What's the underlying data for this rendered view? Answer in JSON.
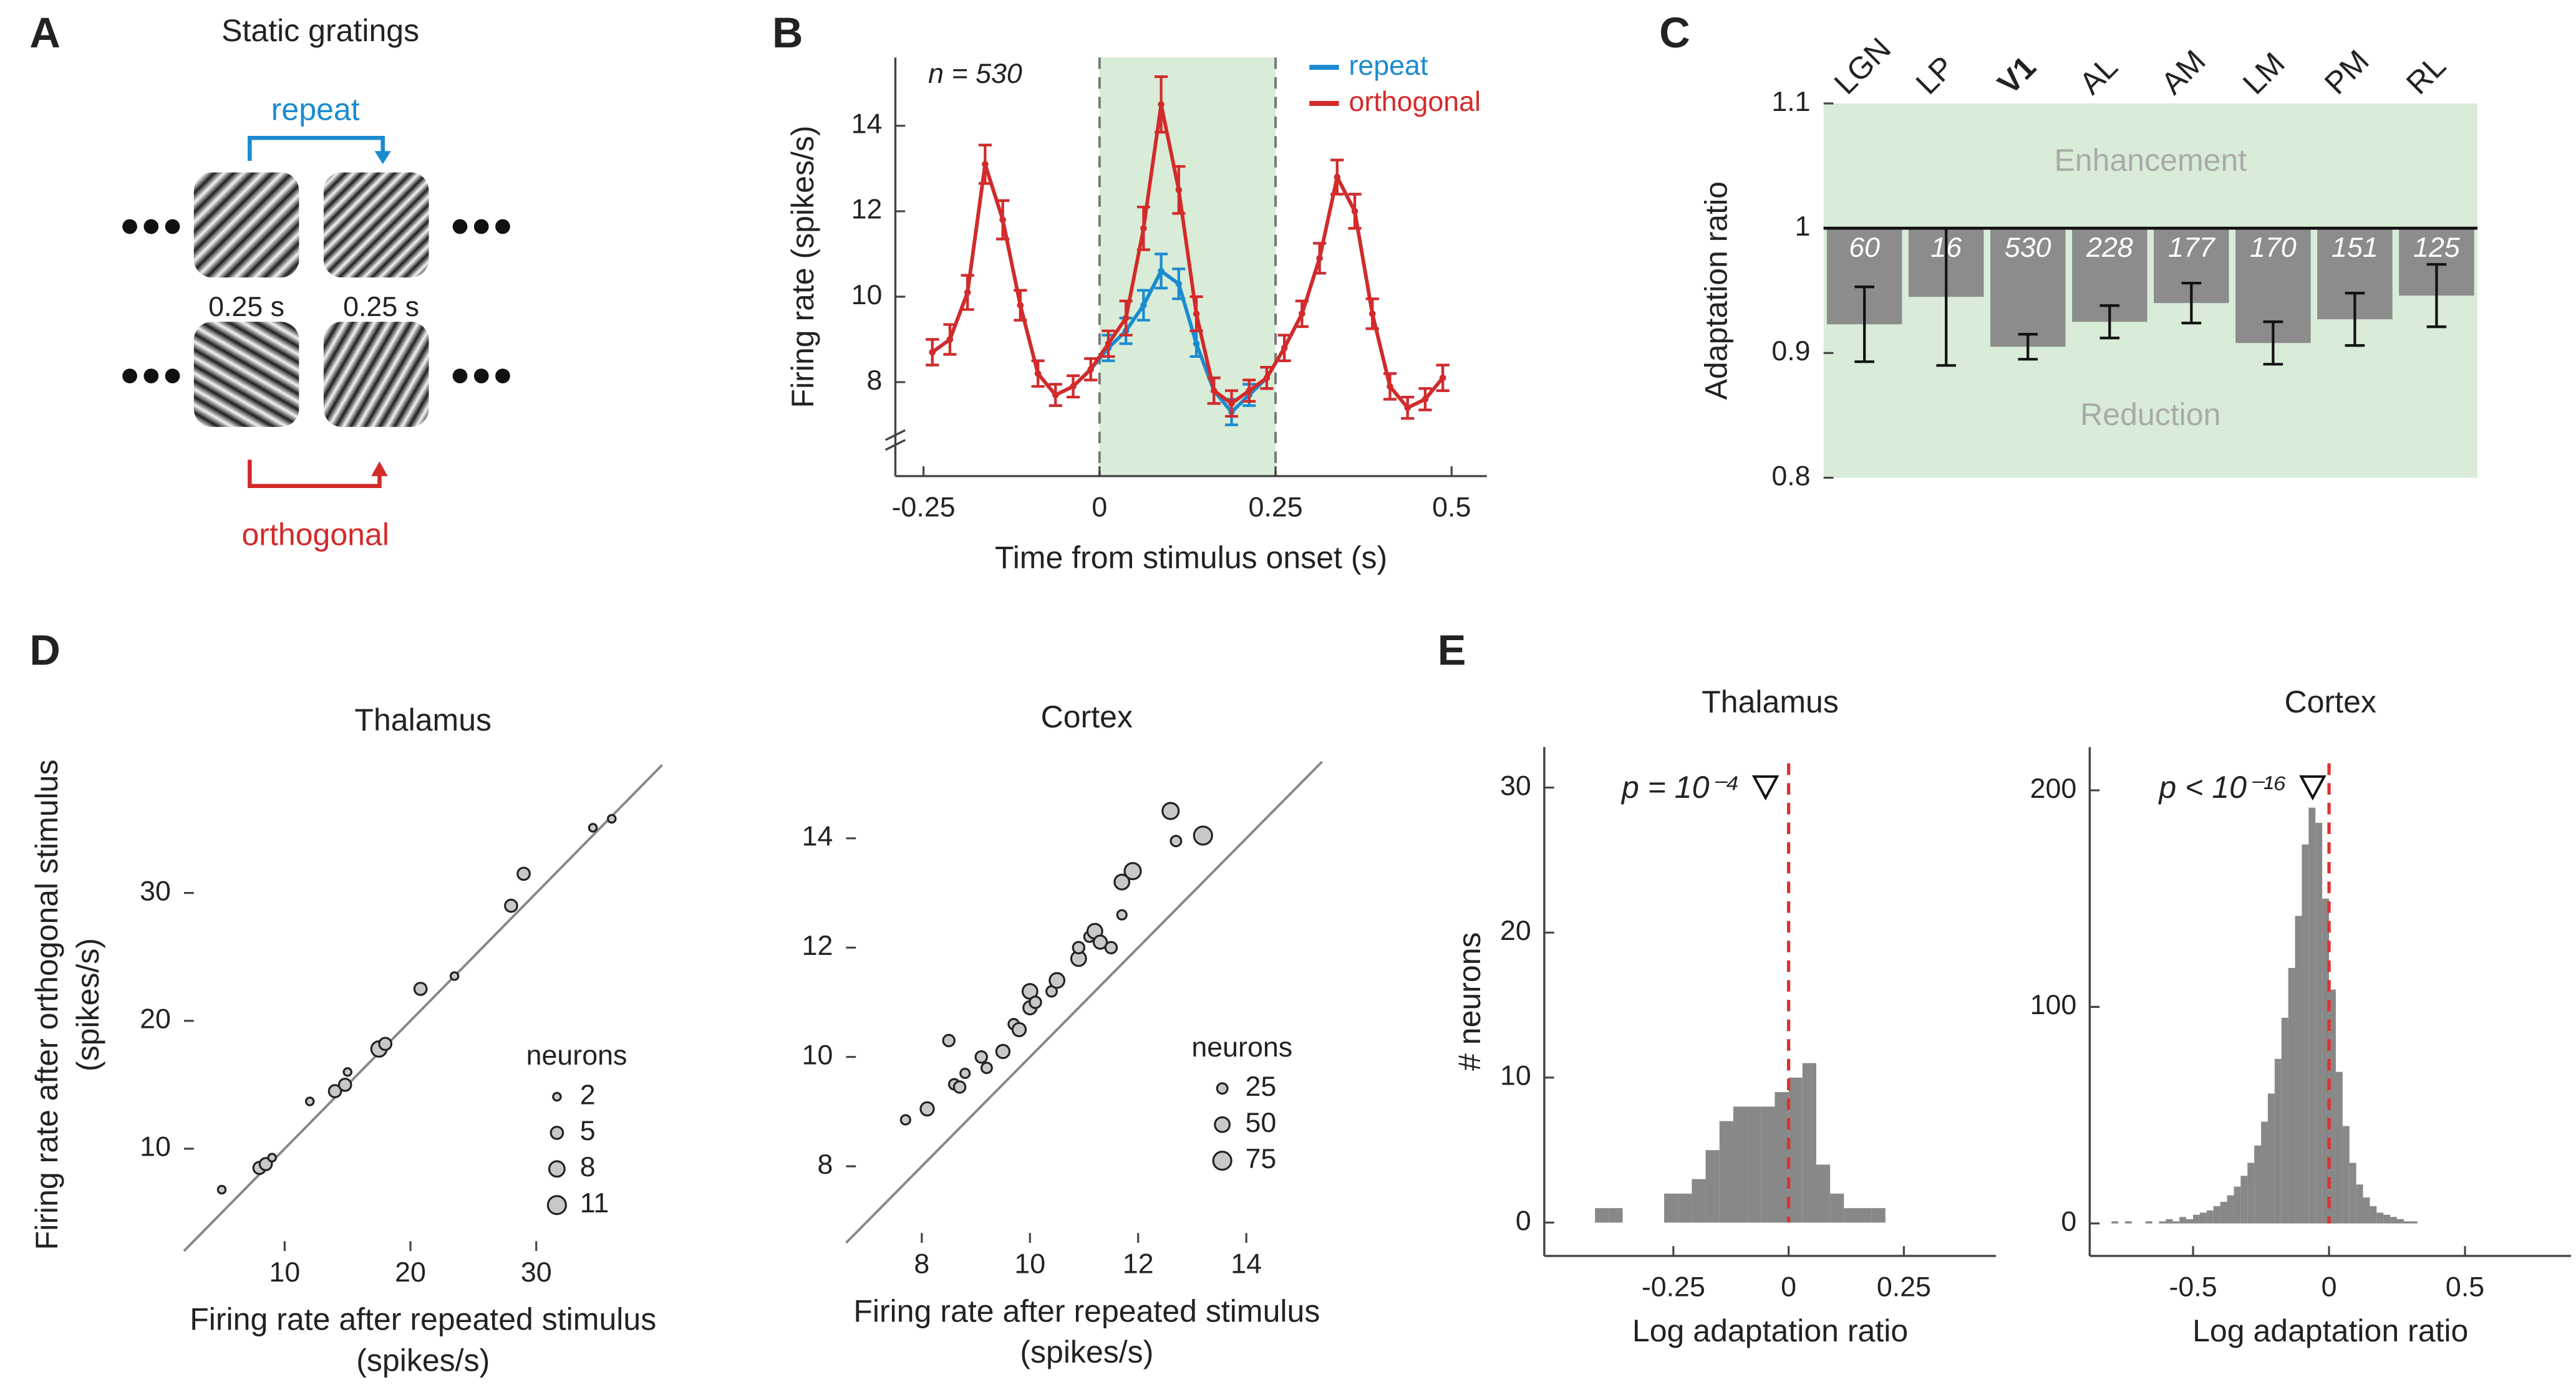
{
  "diagram": {
    "panel": "A",
    "title": "Static gratings",
    "repeat": "repeat",
    "orthogonal": "orthogonal",
    "durations": [
      "0.25 s",
      "0.25 s"
    ]
  },
  "chart_data": [
    {
      "panel": "B",
      "type": "line",
      "x": [
        -0.2375,
        -0.2125,
        -0.1875,
        -0.1625,
        -0.1375,
        -0.1125,
        -0.0875,
        -0.0625,
        -0.0375,
        -0.0125,
        0.0125,
        0.0375,
        0.0625,
        0.0875,
        0.1125,
        0.1375,
        0.1625,
        0.1875,
        0.2125,
        0.2375,
        0.2625,
        0.2875,
        0.3125,
        0.3375,
        0.3625,
        0.3875,
        0.4125,
        0.4375,
        0.4625,
        0.4875
      ],
      "series": [
        {
          "name": "repeat",
          "color": "#1b8bd0",
          "values": [
            8.7,
            9.0,
            10.1,
            13.1,
            11.8,
            9.8,
            8.2,
            7.7,
            7.9,
            8.3,
            8.8,
            9.2,
            9.8,
            10.6,
            10.3,
            8.9,
            7.8,
            7.3,
            7.7,
            8.1,
            8.8,
            9.6,
            10.9,
            12.8,
            12.0,
            9.6,
            7.9,
            7.4,
            7.6,
            8.1
          ],
          "errors": [
            0.3,
            0.35,
            0.4,
            0.45,
            0.45,
            0.35,
            0.3,
            0.25,
            0.25,
            0.25,
            0.3,
            0.3,
            0.35,
            0.4,
            0.35,
            0.3,
            0.3,
            0.3,
            0.25,
            0.25,
            0.3,
            0.3,
            0.35,
            0.4,
            0.4,
            0.35,
            0.3,
            0.25,
            0.25,
            0.3
          ]
        },
        {
          "name": "orthogonal",
          "color": "#d42a2a",
          "values": [
            8.7,
            9.0,
            10.1,
            13.1,
            11.8,
            9.8,
            8.2,
            7.7,
            7.9,
            8.3,
            8.9,
            9.5,
            11.6,
            14.5,
            12.5,
            9.6,
            7.8,
            7.5,
            7.8,
            8.1,
            8.8,
            9.6,
            10.9,
            12.8,
            12.0,
            9.6,
            7.9,
            7.4,
            7.6,
            8.1
          ],
          "errors": [
            0.3,
            0.35,
            0.4,
            0.45,
            0.45,
            0.35,
            0.3,
            0.25,
            0.25,
            0.25,
            0.3,
            0.4,
            0.5,
            0.65,
            0.55,
            0.4,
            0.3,
            0.3,
            0.25,
            0.25,
            0.3,
            0.3,
            0.35,
            0.4,
            0.4,
            0.35,
            0.3,
            0.25,
            0.25,
            0.3
          ]
        }
      ],
      "xlim": [
        -0.29,
        0.55
      ],
      "ylim": [
        5.8,
        15.6
      ],
      "xticks": [
        -0.25,
        0,
        0.25,
        0.5
      ],
      "yticks": [
        8,
        10,
        12,
        14
      ],
      "xlabel": "Time from stimulus onset (s)",
      "ylabel": "Firing rate (spikes/s)",
      "annotation": "n = 530",
      "shade": [
        0,
        0.25
      ],
      "shade_color": "#d8ecd8",
      "legend": "top-right"
    },
    {
      "panel": "C",
      "type": "bar",
      "categories": [
        "LGN",
        "LP",
        "V1",
        "AL",
        "AM",
        "LM",
        "PM",
        "RL"
      ],
      "values": [
        0.923,
        0.945,
        0.905,
        0.925,
        0.94,
        0.908,
        0.927,
        0.946
      ],
      "errors": [
        0.03,
        0.055,
        0.01,
        0.013,
        0.016,
        0.017,
        0.021,
        0.025
      ],
      "counts": [
        60,
        16,
        530,
        228,
        177,
        170,
        151,
        125
      ],
      "baseline": 1,
      "color": "#8c8c8c",
      "highlight": "V1",
      "background": "#d8ecd8",
      "ylim": [
        0.8,
        1.1
      ],
      "yticks": [
        0.8,
        0.9,
        1,
        1.1
      ],
      "ylabel": "Adaptation ratio",
      "annotations": [
        "Enhancement",
        "Reduction"
      ]
    },
    {
      "panel": "D",
      "type": "scatter",
      "title": "Thalamus",
      "x": [
        5,
        8,
        8.5,
        9,
        12,
        14,
        14.8,
        15,
        17.5,
        18,
        20.8,
        23.5,
        28,
        29,
        34.5,
        36
      ],
      "values": [
        6.8,
        8.5,
        8.8,
        9.3,
        13.7,
        14.5,
        15,
        16,
        17.8,
        18.2,
        22.5,
        23.5,
        29,
        31.5,
        35.1,
        35.8
      ],
      "sizes": [
        2,
        5,
        5,
        2,
        2,
        5,
        5,
        2,
        8,
        5,
        5,
        2,
        5,
        5,
        2,
        2
      ],
      "color": "#c8c8c8",
      "diagonal": true,
      "size_legend": {
        "title": "neurons",
        "sizes": [
          2,
          5,
          8,
          11
        ]
      },
      "xlim": [
        2,
        40
      ],
      "ylim": [
        2,
        40
      ],
      "xticks": [
        10,
        20,
        30
      ],
      "yticks": [
        10,
        20,
        30
      ],
      "xlabel": "Firing rate after repeated stimulus",
      "xlabel2": "(spikes/s)",
      "ylabel": "Firing rate after orthogonal stimulus",
      "ylabel2": "(spikes/s)"
    },
    {
      "type": "scatter",
      "title": "Cortex",
      "x": [
        7.7,
        8.1,
        8.5,
        8.6,
        8.7,
        8.8,
        9.1,
        9.2,
        9.5,
        9.7,
        9.8,
        10.0,
        10.0,
        10.1,
        10.4,
        10.5,
        10.9,
        10.9,
        11.1,
        11.2,
        11.3,
        11.5,
        11.7,
        11.7,
        11.9,
        12.6,
        12.7,
        13.2
      ],
      "values": [
        8.85,
        9.05,
        10.3,
        9.5,
        9.45,
        9.7,
        10,
        9.8,
        10.1,
        10.6,
        10.5,
        10.9,
        11.2,
        11.0,
        11.2,
        11.4,
        11.8,
        12.0,
        12.2,
        12.3,
        12.1,
        12.0,
        12.6,
        13.2,
        13.4,
        14.5,
        13.95,
        14.05
      ],
      "sizes": [
        20,
        40,
        30,
        25,
        30,
        20,
        30,
        25,
        40,
        25,
        40,
        40,
        50,
        30,
        25,
        50,
        50,
        30,
        25,
        50,
        40,
        30,
        20,
        50,
        60,
        60,
        25,
        75
      ],
      "color": "#c8c8c8",
      "diagonal": true,
      "size_legend": {
        "title": "neurons",
        "sizes": [
          25,
          50,
          75
        ]
      },
      "xlim": [
        6.6,
        15.5
      ],
      "ylim": [
        6.6,
        15.4
      ],
      "xticks": [
        8,
        10,
        12,
        14
      ],
      "yticks": [
        8,
        10,
        12,
        14
      ],
      "xlabel": "Firing rate after repeated stimulus",
      "xlabel2": "(spikes/s)"
    },
    {
      "panel": "E",
      "type": "histogram",
      "title": "Thalamus",
      "bins": [
        -0.42,
        -0.39,
        -0.36,
        -0.33,
        -0.3,
        -0.27,
        -0.24,
        -0.21,
        -0.18,
        -0.15,
        -0.12,
        -0.09,
        -0.06,
        -0.03,
        0,
        0.03,
        0.06,
        0.09,
        0.12,
        0.15,
        0.18,
        0.21
      ],
      "values": [
        1,
        1,
        0,
        0,
        0,
        2,
        2,
        3,
        5,
        7,
        8,
        8,
        8,
        9,
        10,
        11,
        4,
        2,
        1,
        1,
        1
      ],
      "color": "#888888",
      "median": -0.05,
      "refline": 0,
      "refline_color": "#e03030",
      "annotation": "p = 10⁻⁴",
      "xlim": [
        -0.53,
        0.45
      ],
      "ylim": [
        -2.3,
        32.8
      ],
      "xticks": [
        -0.25,
        0,
        0.25
      ],
      "yticks": [
        0,
        10,
        20,
        30
      ],
      "xlabel": "Log adaptation ratio",
      "ylabel": "# neurons"
    },
    {
      "type": "histogram",
      "title": "Cortex",
      "bins": [
        -0.8,
        -0.775,
        -0.75,
        -0.725,
        -0.7,
        -0.675,
        -0.65,
        -0.625,
        -0.6,
        -0.575,
        -0.55,
        -0.525,
        -0.5,
        -0.475,
        -0.45,
        -0.425,
        -0.4,
        -0.375,
        -0.35,
        -0.325,
        -0.3,
        -0.275,
        -0.25,
        -0.225,
        -0.2,
        -0.175,
        -0.15,
        -0.125,
        -0.1,
        -0.075,
        -0.05,
        -0.025,
        0,
        0.025,
        0.05,
        0.075,
        0.1,
        0.125,
        0.15,
        0.175,
        0.2,
        0.225,
        0.25,
        0.275,
        0.3,
        0.325
      ],
      "values": [
        1,
        0,
        1,
        0,
        0,
        1,
        0,
        1,
        2,
        1,
        3,
        2,
        4,
        5,
        6,
        8,
        10,
        13,
        17,
        22,
        28,
        36,
        47,
        60,
        76,
        95,
        118,
        142,
        175,
        192,
        185,
        150,
        108,
        70,
        45,
        28,
        18,
        12,
        8,
        5,
        4,
        3,
        2,
        1,
        1
      ],
      "color": "#888888",
      "median": -0.06,
      "refline": 0,
      "refline_color": "#e03030",
      "annotation": "p < 10⁻¹⁶",
      "xlim": [
        -0.88,
        0.89
      ],
      "ylim": [
        -15,
        220
      ],
      "xticks": [
        -0.5,
        0,
        0.5
      ],
      "yticks": [
        0,
        100,
        200
      ],
      "xlabel": "Log adaptation ratio"
    }
  ]
}
